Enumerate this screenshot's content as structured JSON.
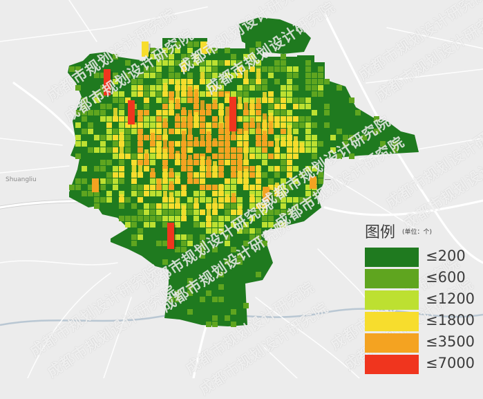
{
  "legend": {
    "title": "图例",
    "unit": "(单位：个)",
    "items": [
      {
        "label": "≤200",
        "color": "#1f7a1f"
      },
      {
        "label": "≤600",
        "color": "#5fa51f"
      },
      {
        "label": "≤1200",
        "color": "#bde031"
      },
      {
        "label": "≤1800",
        "color": "#f7dd2d"
      },
      {
        "label": "≤3500",
        "color": "#f4a321"
      },
      {
        "label": "≤7000",
        "color": "#f0351e"
      }
    ]
  },
  "watermark": "成都市规划设计研究院",
  "map_labels": [
    "Shuangliu"
  ],
  "colors": {
    "background": "#ececec",
    "region": "#1f7a1f",
    "road": "#ffffff"
  }
}
